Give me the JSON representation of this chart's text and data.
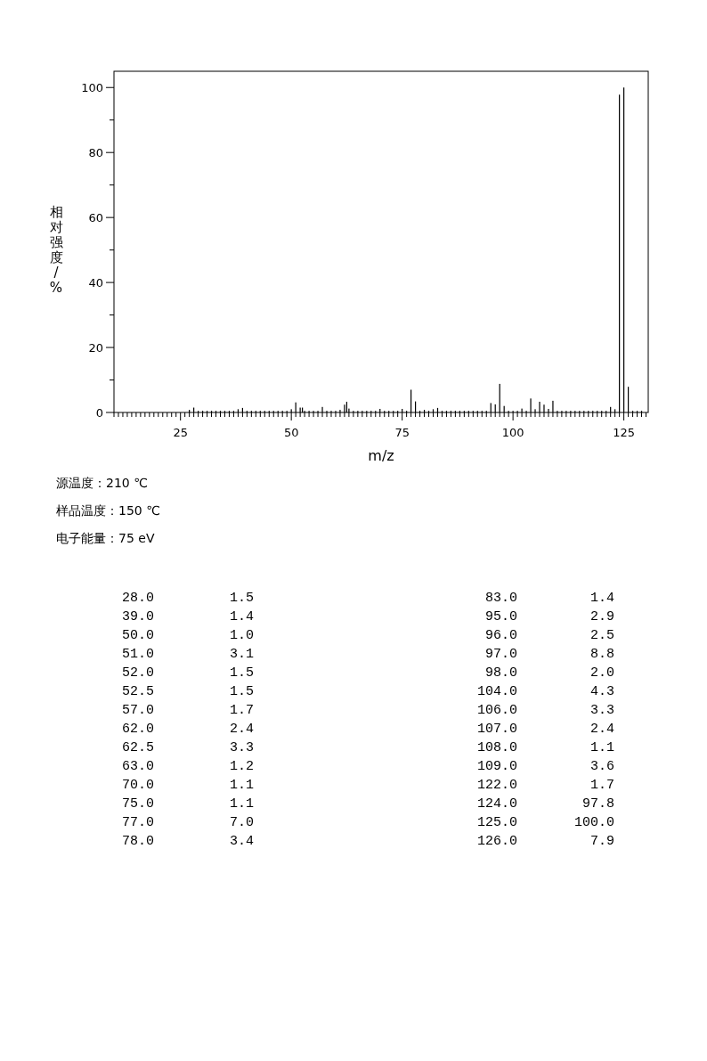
{
  "chart_data": [
    {
      "type": "bar",
      "xlabel": "m/z",
      "ylabel": "相对强度/%",
      "annotations": [
        "源温度：210 ℃",
        "样品温度：150 ℃",
        "电子能量：75 eV"
      ],
      "xlim": [
        10,
        130.5
      ],
      "ylim": [
        0,
        105
      ],
      "xticks": [
        {
          "value": 10,
          "label": null
        },
        {
          "value": 11,
          "label": null
        },
        {
          "value": 12,
          "label": null
        },
        {
          "value": 13,
          "label": null
        },
        {
          "value": 14,
          "label": null
        },
        {
          "value": 15,
          "label": null
        },
        {
          "value": 16,
          "label": null
        },
        {
          "value": 17,
          "label": null
        },
        {
          "value": 18,
          "label": null
        },
        {
          "value": 19,
          "label": null
        },
        {
          "value": 20,
          "label": null
        },
        {
          "value": 21,
          "label": null
        },
        {
          "value": 22,
          "label": null
        },
        {
          "value": 23,
          "label": null
        },
        {
          "value": 24,
          "label": null
        },
        25,
        {
          "value": 26,
          "label": null
        },
        {
          "value": 27,
          "label": null
        },
        {
          "value": 28,
          "label": null
        },
        {
          "value": 29,
          "label": null
        },
        {
          "value": 30,
          "label": null
        },
        {
          "value": 31,
          "label": null
        },
        {
          "value": 32,
          "label": null
        },
        {
          "value": 33,
          "label": null
        },
        {
          "value": 34,
          "label": null
        },
        {
          "value": 35,
          "label": null
        },
        {
          "value": 36,
          "label": null
        },
        {
          "value": 37,
          "label": null
        },
        {
          "value": 38,
          "label": null
        },
        {
          "value": 39,
          "label": null
        },
        {
          "value": 40,
          "label": null
        },
        {
          "value": 41,
          "label": null
        },
        {
          "value": 42,
          "label": null
        },
        {
          "value": 43,
          "label": null
        },
        {
          "value": 44,
          "label": null
        },
        {
          "value": 45,
          "label": null
        },
        {
          "value": 46,
          "label": null
        },
        {
          "value": 47,
          "label": null
        },
        {
          "value": 48,
          "label": null
        },
        {
          "value": 49,
          "label": null
        },
        50,
        {
          "value": 51,
          "label": null
        },
        {
          "value": 52,
          "label": null
        },
        {
          "value": 53,
          "label": null
        },
        {
          "value": 54,
          "label": null
        },
        {
          "value": 55,
          "label": null
        },
        {
          "value": 56,
          "label": null
        },
        {
          "value": 57,
          "label": null
        },
        {
          "value": 58,
          "label": null
        },
        {
          "value": 59,
          "label": null
        },
        {
          "value": 60,
          "label": null
        },
        {
          "value": 61,
          "label": null
        },
        {
          "value": 62,
          "label": null
        },
        {
          "value": 63,
          "label": null
        },
        {
          "value": 64,
          "label": null
        },
        {
          "value": 65,
          "label": null
        },
        {
          "value": 66,
          "label": null
        },
        {
          "value": 67,
          "label": null
        },
        {
          "value": 68,
          "label": null
        },
        {
          "value": 69,
          "label": null
        },
        {
          "value": 70,
          "label": null
        },
        {
          "value": 71,
          "label": null
        },
        {
          "value": 72,
          "label": null
        },
        {
          "value": 73,
          "label": null
        },
        {
          "value": 74,
          "label": null
        },
        75,
        {
          "value": 76,
          "label": null
        },
        {
          "value": 77,
          "label": null
        },
        {
          "value": 78,
          "label": null
        },
        {
          "value": 79,
          "label": null
        },
        {
          "value": 80,
          "label": null
        },
        {
          "value": 81,
          "label": null
        },
        {
          "value": 82,
          "label": null
        },
        {
          "value": 83,
          "label": null
        },
        {
          "value": 84,
          "label": null
        },
        {
          "value": 85,
          "label": null
        },
        {
          "value": 86,
          "label": null
        },
        {
          "value": 87,
          "label": null
        },
        {
          "value": 88,
          "label": null
        },
        {
          "value": 89,
          "label": null
        },
        {
          "value": 90,
          "label": null
        },
        {
          "value": 91,
          "label": null
        },
        {
          "value": 92,
          "label": null
        },
        {
          "value": 93,
          "label": null
        },
        {
          "value": 94,
          "label": null
        },
        {
          "value": 95,
          "label": null
        },
        {
          "value": 96,
          "label": null
        },
        {
          "value": 97,
          "label": null
        },
        {
          "value": 98,
          "label": null
        },
        {
          "value": 99,
          "label": null
        },
        100,
        {
          "value": 101,
          "label": null
        },
        {
          "value": 102,
          "label": null
        },
        {
          "value": 103,
          "label": null
        },
        {
          "value": 104,
          "label": null
        },
        {
          "value": 105,
          "label": null
        },
        {
          "value": 106,
          "label": null
        },
        {
          "value": 107,
          "label": null
        },
        {
          "value": 108,
          "label": null
        },
        {
          "value": 109,
          "label": null
        },
        {
          "value": 110,
          "label": null
        },
        {
          "value": 111,
          "label": null
        },
        {
          "value": 112,
          "label": null
        },
        {
          "value": 113,
          "label": null
        },
        {
          "value": 114,
          "label": null
        },
        {
          "value": 115,
          "label": null
        },
        {
          "value": 116,
          "label": null
        },
        {
          "value": 117,
          "label": null
        },
        {
          "value": 118,
          "label": null
        },
        {
          "value": 119,
          "label": null
        },
        {
          "value": 120,
          "label": null
        },
        {
          "value": 121,
          "label": null
        },
        {
          "value": 122,
          "label": null
        },
        {
          "value": 123,
          "label": null
        },
        {
          "value": 124,
          "label": null
        },
        125,
        {
          "value": 126,
          "label": null
        },
        {
          "value": 127,
          "label": null
        },
        {
          "value": 128,
          "label": null
        },
        {
          "value": 129,
          "label": null
        },
        {
          "value": 130,
          "label": null
        }
      ],
      "yticks": [
        0,
        {
          "value": 10,
          "label": null
        },
        20,
        {
          "value": 30,
          "label": null
        },
        40,
        {
          "value": 50,
          "label": null
        },
        60,
        {
          "value": 70,
          "label": null
        },
        80,
        {
          "value": 90,
          "label": null
        },
        100
      ],
      "series": [
        {
          "color": "#000000",
          "x": [
            27,
            28,
            29,
            30,
            31,
            32,
            33,
            34,
            35,
            36,
            37,
            38,
            39,
            40,
            41,
            42,
            43,
            44,
            45,
            46,
            47,
            48,
            49,
            50,
            51,
            52,
            52.5,
            53,
            54,
            55,
            56,
            57,
            58,
            59,
            60,
            61,
            62,
            62.5,
            63,
            64,
            65,
            66,
            67,
            68,
            69,
            70,
            71,
            72,
            73,
            74,
            75,
            76,
            77,
            78,
            79,
            80,
            81,
            82,
            83,
            84,
            85,
            86,
            87,
            88,
            89,
            90,
            91,
            92,
            93,
            94,
            95,
            96,
            97,
            98,
            99,
            100,
            101,
            102,
            103,
            104,
            105,
            106,
            107,
            108,
            109,
            110,
            111,
            112,
            113,
            114,
            115,
            116,
            117,
            118,
            119,
            120,
            121,
            122,
            123,
            124,
            125,
            126,
            127,
            128,
            129
          ],
          "values": [
            0.8,
            1.5,
            0.5,
            0.5,
            0.5,
            0.5,
            0.5,
            0.5,
            0.5,
            0.5,
            0.5,
            1.0,
            1.4,
            0.5,
            0.5,
            0.5,
            0.5,
            0.5,
            0.5,
            0.5,
            0.5,
            0.5,
            0.5,
            1.0,
            3.1,
            1.5,
            1.5,
            0.5,
            0.5,
            0.5,
            0.5,
            1.7,
            0.5,
            0.5,
            0.5,
            0.8,
            2.4,
            3.3,
            1.2,
            0.5,
            0.5,
            0.5,
            0.5,
            0.5,
            0.5,
            1.1,
            0.5,
            0.5,
            0.5,
            0.5,
            1.1,
            0.5,
            7.0,
            3.4,
            0.5,
            0.8,
            0.5,
            1.0,
            1.4,
            0.5,
            0.5,
            0.5,
            0.5,
            0.5,
            0.5,
            0.5,
            0.5,
            0.5,
            0.5,
            0.5,
            2.9,
            2.5,
            8.8,
            2.0,
            0.5,
            0.5,
            0.5,
            1.2,
            0.5,
            4.3,
            1.0,
            3.3,
            2.4,
            1.1,
            3.6,
            0.5,
            0.5,
            0.5,
            0.5,
            0.5,
            0.5,
            0.5,
            0.5,
            0.5,
            0.5,
            0.5,
            0.5,
            1.7,
            1.0,
            97.8,
            100.0,
            7.9,
            0.5,
            0.5,
            0.5
          ]
        }
      ]
    },
    {
      "type": "other",
      "categories": [
        "28.0",
        "39.0",
        "50.0",
        "51.0",
        "52.0",
        "52.5",
        "57.0",
        "62.0",
        "62.5",
        "63.0",
        "70.0",
        "75.0",
        "77.0",
        "78.0",
        "83.0",
        "95.0",
        "96.0",
        "97.0",
        "98.0",
        "104.0",
        "106.0",
        "107.0",
        "108.0",
        "109.0",
        "122.0",
        "124.0",
        "125.0",
        "126.0"
      ],
      "value_labels": [
        "1.5",
        "1.4",
        "1.0",
        "3.1",
        "1.5",
        "1.5",
        "1.7",
        "2.4",
        "3.3",
        "1.2",
        "1.1",
        "1.1",
        "7.0",
        "3.4",
        "1.4",
        "2.9",
        "2.5",
        "8.8",
        "2.0",
        "4.3",
        "3.3",
        "2.4",
        "1.1",
        "3.6",
        "1.7",
        "97.8",
        "100.0",
        "7.9"
      ]
    }
  ]
}
